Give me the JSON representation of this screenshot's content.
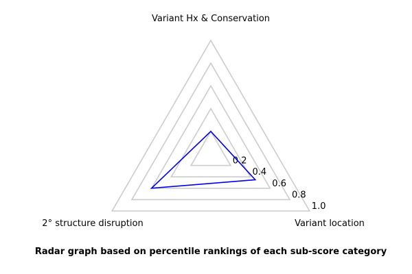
{
  "chart_data": {
    "type": "radar",
    "title": "Radar graph based on percentile rankings of each sub-score category",
    "axes": [
      "Variant Hx & Conservation",
      "Variant location",
      "2° structure disruption"
    ],
    "rings": [
      0.2,
      0.4,
      0.6,
      0.8,
      1.0
    ],
    "ring_labels": [
      "0.2",
      "0.4",
      "0.6",
      "0.8",
      "1.0"
    ],
    "range": [
      0,
      1.0
    ],
    "series": [
      {
        "values": [
          0.2,
          0.45,
          0.6
        ],
        "color": "#0000ee"
      }
    ],
    "grid_color": "#cccccc",
    "legend": "none"
  }
}
